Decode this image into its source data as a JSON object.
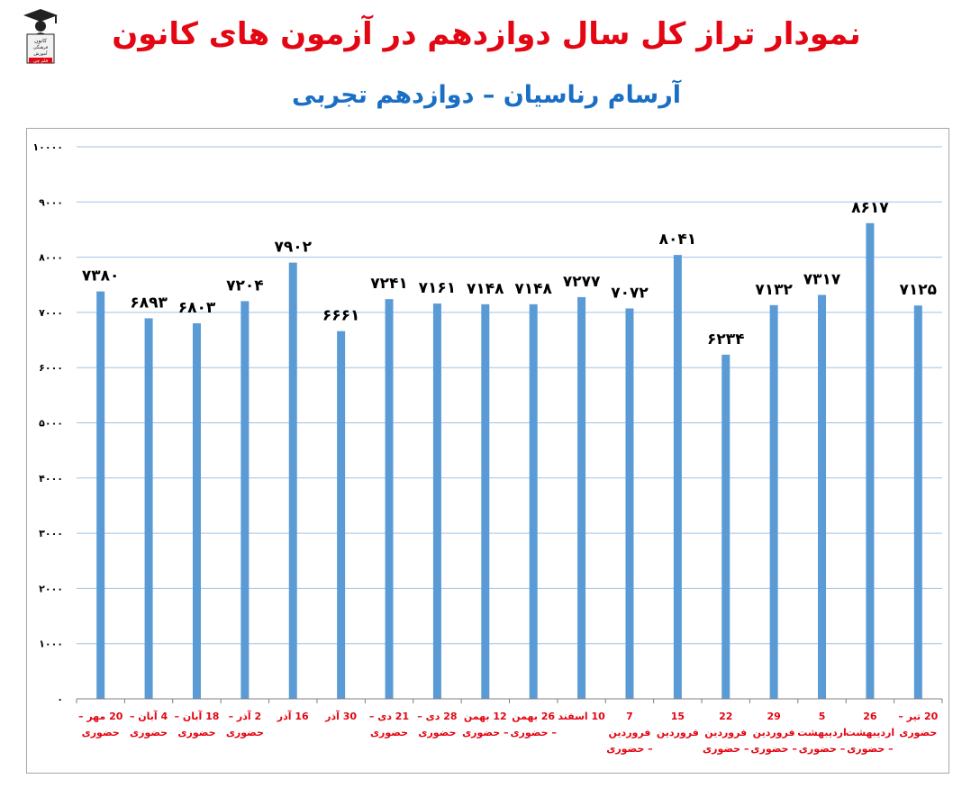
{
  "title": "نمودار تراز کل سال دوازدهم در آزمون های کانون",
  "subtitle": "آرسام رناسیان – دوازدهم تجربی",
  "logo": {
    "icon": "graduate-icon",
    "lines": [
      "کانون",
      "فرهنگی",
      "آموزش",
      "قلم چی"
    ]
  },
  "colors": {
    "title": "#e30613",
    "subtitle": "#1a6fc4",
    "bar": "#5b9bd5",
    "grid": "#9dc3e6",
    "xlabel": "#e30613"
  },
  "chart_data": {
    "type": "bar",
    "title": "",
    "xlabel": "",
    "ylabel": "",
    "ylim": [
      0,
      10000
    ],
    "yticks": [
      0,
      1000,
      2000,
      3000,
      4000,
      5000,
      6000,
      7000,
      8000,
      9000,
      10000
    ],
    "ytick_labels": [
      "۰",
      "۱۰۰۰",
      "۲۰۰۰",
      "۳۰۰۰",
      "۴۰۰۰",
      "۵۰۰۰",
      "۶۰۰۰",
      "۷۰۰۰",
      "۸۰۰۰",
      "۹۰۰۰",
      "۱۰۰۰۰"
    ],
    "grid": true,
    "legend": "none",
    "categories": [
      "20 مهر – حضوری",
      "4 آبان – حضوری",
      "18 آبان – حضوری",
      "2 آذر – حضوری",
      "16 آذر",
      "30 آذر",
      "21 دی – حضوری",
      "28 دی – حضوری",
      "12 بهمن – حضوری",
      "26 بهمن – حضوری",
      "10 اسفند",
      "7 فروردین – حضوری",
      "15 فروردین",
      "22 فروردین – حضوری",
      "29 فروردین – حضوری",
      "5 اردیبهشت – حضوری",
      "26 اردیبهشت – حضوری",
      "20 تیر – حضوری"
    ],
    "values": [
      7380,
      6893,
      6803,
      7204,
      7902,
      6661,
      7241,
      7161,
      7148,
      7148,
      7277,
      7072,
      8041,
      6234,
      7132,
      7317,
      8617,
      7125
    ],
    "data_labels": [
      "۷۳۸۰",
      "۶۸۹۳",
      "۶۸۰۳",
      "۷۲۰۴",
      "۷۹۰۲",
      "۶۶۶۱",
      "۷۲۴۱",
      "۷۱۶۱",
      "۷۱۴۸",
      "۷۱۴۸",
      "۷۲۷۷",
      "۷۰۷۲",
      "۸۰۴۱",
      "۶۲۳۴",
      "۷۱۳۲",
      "۷۳۱۷",
      "۸۶۱۷",
      "۷۱۲۵"
    ]
  }
}
